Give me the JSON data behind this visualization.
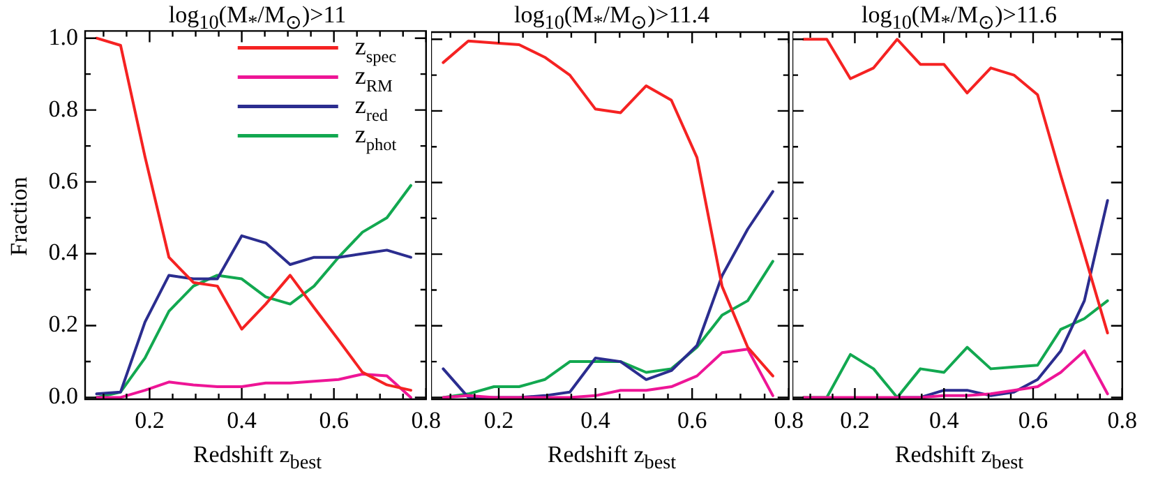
{
  "chart_data": [
    {
      "type": "line",
      "title": "log$_{10}$(M$_{*}$/M$_{⊙}$)>11",
      "xlabel": "Redshift z$_{best}$",
      "ylabel": "Fraction",
      "legend": "top right",
      "x": [
        0.085,
        0.137,
        0.19,
        0.242,
        0.295,
        0.347,
        0.4,
        0.452,
        0.505,
        0.557,
        0.61,
        0.662,
        0.715,
        0.767
      ],
      "xlim": [
        0.06,
        0.8
      ],
      "ylim": [
        -0.005,
        1.02
      ],
      "xticks": [
        {
          "value": 0.1,
          "label": null
        },
        {
          "value": 0.15,
          "label": null
        },
        0.2,
        {
          "value": 0.25,
          "label": null
        },
        {
          "value": 0.3,
          "label": null
        },
        {
          "value": 0.35,
          "label": null
        },
        0.4,
        {
          "value": 0.45,
          "label": null
        },
        {
          "value": 0.5,
          "label": null
        },
        {
          "value": 0.55,
          "label": null
        },
        0.6,
        {
          "value": 0.65,
          "label": null
        },
        {
          "value": 0.7,
          "label": null
        },
        {
          "value": 0.75,
          "label": null
        },
        0.8
      ],
      "yticks": [
        {
          "value": 0,
          "label": "0.0"
        },
        {
          "value": 0.1,
          "label": null
        },
        0.2,
        {
          "value": 0.3,
          "label": null
        },
        0.4,
        {
          "value": 0.5,
          "label": null
        },
        0.6,
        {
          "value": 0.7,
          "label": null
        },
        0.8,
        {
          "value": 0.9,
          "label": null
        },
        {
          "value": 1,
          "label": "1.0"
        }
      ],
      "series": [
        {
          "name": "z$_{spec}$",
          "color": "#f52222",
          "values": [
            1.0,
            0.98,
            0.67,
            0.39,
            0.32,
            0.31,
            0.19,
            0.26,
            0.34,
            0.25,
            0.16,
            0.07,
            0.035,
            0.02
          ]
        },
        {
          "name": "z$_{RM}$",
          "color": "#ee1596",
          "values": [
            0,
            0,
            0.02,
            0.043,
            0.035,
            0.03,
            0.03,
            0.04,
            0.04,
            0.045,
            0.05,
            0.065,
            0.06,
            0
          ]
        },
        {
          "name": "z$_{red}$",
          "color": "#2b2d8f",
          "values": [
            0.01,
            0.015,
            0.21,
            0.34,
            0.33,
            0.33,
            0.45,
            0.43,
            0.37,
            0.39,
            0.39,
            0.4,
            0.41,
            0.39
          ]
        },
        {
          "name": "z$_{phot}$",
          "color": "#12a850",
          "values": [
            0,
            0.015,
            0.11,
            0.24,
            0.31,
            0.34,
            0.33,
            0.28,
            0.26,
            0.31,
            0.39,
            0.46,
            0.5,
            0.59
          ]
        }
      ]
    },
    {
      "type": "line",
      "title": "log$_{10}$(M$_{*}$/M$_{⊙}$)>11.4",
      "xlabel": "Redshift z$_{best}$",
      "tick_labels": "x",
      "x": [
        0.085,
        0.137,
        0.19,
        0.242,
        0.295,
        0.347,
        0.4,
        0.452,
        0.505,
        0.557,
        0.61,
        0.662,
        0.715,
        0.767
      ],
      "xlim": [
        0.06,
        0.8
      ],
      "ylim": [
        -0.005,
        1.02
      ],
      "xticks": [
        {
          "value": 0.1,
          "label": null
        },
        {
          "value": 0.15,
          "label": null
        },
        0.2,
        {
          "value": 0.25,
          "label": null
        },
        {
          "value": 0.3,
          "label": null
        },
        {
          "value": 0.35,
          "label": null
        },
        0.4,
        {
          "value": 0.45,
          "label": null
        },
        {
          "value": 0.5,
          "label": null
        },
        {
          "value": 0.55,
          "label": null
        },
        0.6,
        {
          "value": 0.65,
          "label": null
        },
        {
          "value": 0.7,
          "label": null
        },
        {
          "value": 0.75,
          "label": null
        },
        0.8
      ],
      "yticks": [
        0,
        {
          "value": 0.1,
          "label": null
        },
        0.2,
        {
          "value": 0.3,
          "label": null
        },
        0.4,
        {
          "value": 0.5,
          "label": null
        },
        0.6,
        {
          "value": 0.7,
          "label": null
        },
        0.8,
        {
          "value": 0.9,
          "label": null
        },
        1
      ],
      "series": [
        {
          "color": "#f52222",
          "values": [
            0.935,
            0.995,
            0.99,
            0.985,
            0.95,
            0.9,
            0.805,
            0.795,
            0.87,
            0.83,
            0.67,
            0.31,
            0.14,
            0.06
          ]
        },
        {
          "color": "#ee1596",
          "values": [
            0,
            0.005,
            0,
            0,
            0,
            0,
            0.005,
            0.02,
            0.02,
            0.03,
            0.06,
            0.125,
            0.135,
            0.005
          ]
        },
        {
          "color": "#2b2d8f",
          "values": [
            0.08,
            0,
            0,
            0,
            0.005,
            0.015,
            0.11,
            0.1,
            0.05,
            0.075,
            0.145,
            0.34,
            0.47,
            0.575
          ]
        },
        {
          "color": "#12a850",
          "values": [
            0,
            0.01,
            0.03,
            0.03,
            0.05,
            0.1,
            0.1,
            0.1,
            0.07,
            0.08,
            0.14,
            0.23,
            0.27,
            0.38
          ]
        }
      ]
    },
    {
      "type": "line",
      "title": "log$_{10}$(M$_{*}$/M$_{⊙}$)>11.6",
      "xlabel": "Redshift z$_{best}$",
      "tick_labels": "x",
      "x": [
        0.085,
        0.137,
        0.19,
        0.242,
        0.295,
        0.347,
        0.4,
        0.452,
        0.505,
        0.557,
        0.61,
        0.662,
        0.715,
        0.767
      ],
      "xlim": [
        0.06,
        0.8
      ],
      "ylim": [
        -0.005,
        1.02
      ],
      "xticks": [
        {
          "value": 0.1,
          "label": null
        },
        {
          "value": 0.15,
          "label": null
        },
        0.2,
        {
          "value": 0.25,
          "label": null
        },
        {
          "value": 0.3,
          "label": null
        },
        {
          "value": 0.35,
          "label": null
        },
        0.4,
        {
          "value": 0.45,
          "label": null
        },
        {
          "value": 0.5,
          "label": null
        },
        {
          "value": 0.55,
          "label": null
        },
        0.6,
        {
          "value": 0.65,
          "label": null
        },
        {
          "value": 0.7,
          "label": null
        },
        {
          "value": 0.75,
          "label": null
        },
        0.8
      ],
      "yticks": [
        0,
        {
          "value": 0.1,
          "label": null
        },
        0.2,
        {
          "value": 0.3,
          "label": null
        },
        0.4,
        {
          "value": 0.5,
          "label": null
        },
        0.6,
        {
          "value": 0.7,
          "label": null
        },
        0.8,
        {
          "value": 0.9,
          "label": null
        },
        1
      ],
      "series": [
        {
          "color": "#f52222",
          "values": [
            1.0,
            1.0,
            0.89,
            0.92,
            1.0,
            0.93,
            0.93,
            0.85,
            0.92,
            0.9,
            0.845,
            0.62,
            0.4,
            0.18
          ]
        },
        {
          "color": "#ee1596",
          "values": [
            0,
            0,
            0,
            0,
            0,
            0,
            0.005,
            0.005,
            0.01,
            0.02,
            0.03,
            0.07,
            0.13,
            0.01
          ]
        },
        {
          "color": "#2b2d8f",
          "values": [
            null,
            null,
            null,
            null,
            0,
            0,
            0.02,
            0.02,
            0.005,
            0.015,
            0.05,
            0.13,
            0.27,
            0.55
          ]
        },
        {
          "color": "#12a850",
          "values": [
            0,
            0,
            0.12,
            0.08,
            0,
            0.08,
            0.07,
            0.14,
            0.08,
            0.085,
            0.09,
            0.19,
            0.22,
            0.27
          ]
        }
      ]
    }
  ]
}
